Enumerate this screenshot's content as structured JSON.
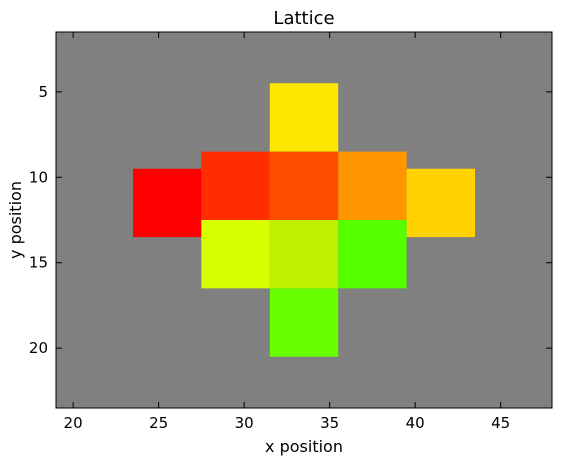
{
  "chart_data": {
    "type": "heatmap",
    "title": "Lattice",
    "xlabel": "x position",
    "ylabel": "y position",
    "xlim": [
      19,
      48
    ],
    "ylim": [
      23.5,
      1.5
    ],
    "y_inverted": true,
    "xticks": [
      20,
      25,
      30,
      35,
      40,
      45
    ],
    "yticks": [
      5,
      10,
      15,
      20
    ],
    "background_color": "#808080",
    "grid": false,
    "cells": [
      {
        "x_range": [
          31.5,
          35.5
        ],
        "y_range": [
          4.5,
          8.5
        ],
        "color": "#ffe600"
      },
      {
        "x_range": [
          27.5,
          31.5
        ],
        "y_range": [
          8.5,
          12.5
        ],
        "color": "#ff2d00"
      },
      {
        "x_range": [
          31.5,
          35.5
        ],
        "y_range": [
          8.5,
          12.5
        ],
        "color": "#ff4d00"
      },
      {
        "x_range": [
          35.5,
          39.5
        ],
        "y_range": [
          8.5,
          12.5
        ],
        "color": "#ff9600"
      },
      {
        "x_range": [
          23.5,
          27.5
        ],
        "y_range": [
          9.5,
          13.5
        ],
        "color": "#ff0000"
      },
      {
        "x_range": [
          39.5,
          43.5
        ],
        "y_range": [
          9.5,
          13.5
        ],
        "color": "#ffd200"
      },
      {
        "x_range": [
          27.5,
          31.5
        ],
        "y_range": [
          12.5,
          16.5
        ],
        "color": "#d8ff00"
      },
      {
        "x_range": [
          31.5,
          35.5
        ],
        "y_range": [
          12.5,
          16.5
        ],
        "color": "#c0f000"
      },
      {
        "x_range": [
          35.5,
          39.5
        ],
        "y_range": [
          12.5,
          16.5
        ],
        "color": "#55ff00"
      },
      {
        "x_range": [
          31.5,
          35.5
        ],
        "y_range": [
          16.5,
          20.5
        ],
        "color": "#66ff00"
      }
    ]
  }
}
